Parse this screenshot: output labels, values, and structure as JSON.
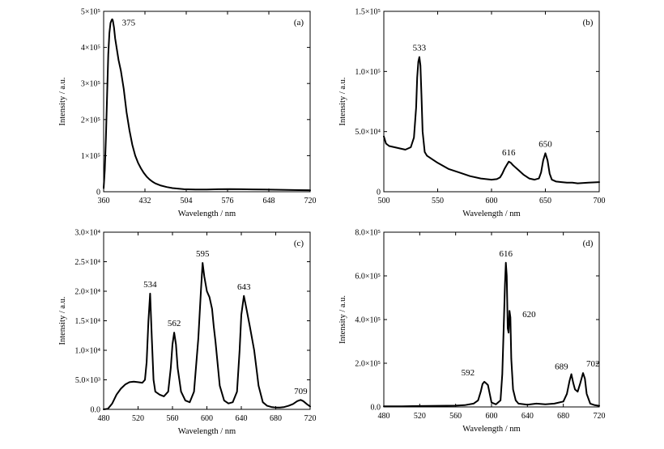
{
  "chart_data": [
    {
      "type": "line",
      "panel_label": "(a)",
      "xlabel": "Wavelength / nm",
      "ylabel": "Intensity / a.u.",
      "xlim": [
        360,
        720
      ],
      "ylim": [
        0,
        500000
      ],
      "x_ticks": [
        360,
        432,
        504,
        576,
        648,
        720
      ],
      "x_tick_labels": [
        "360",
        "432",
        "504",
        "576",
        "648",
        "720"
      ],
      "y_ticks": [
        0,
        100000,
        200000,
        300000,
        400000,
        500000
      ],
      "y_tick_labels": [
        "0",
        "1×10⁵",
        "2×10⁵",
        "3×10⁵",
        "4×10⁵",
        "5×10⁵"
      ],
      "annotations": [
        {
          "text": "375",
          "x": 375,
          "y": 470000
        }
      ],
      "series": [
        {
          "x": [
            360,
            362,
            364,
            366,
            368,
            370,
            372,
            374,
            375,
            376,
            378,
            380,
            383,
            386,
            390,
            395,
            400,
            405,
            410,
            415,
            420,
            425,
            430,
            435,
            440,
            445,
            450,
            460,
            470,
            480,
            500,
            520,
            540,
            560,
            580,
            600,
            620,
            640,
            660,
            680,
            700,
            720
          ],
          "y": [
            10000,
            60000,
            150000,
            270000,
            380000,
            440000,
            468000,
            476000,
            478000,
            475000,
            455000,
            425000,
            395000,
            365000,
            335000,
            285000,
            220000,
            170000,
            130000,
            100000,
            80000,
            65000,
            52000,
            42000,
            34000,
            28000,
            23000,
            17000,
            13000,
            10000,
            7000,
            6000,
            6000,
            7000,
            7500,
            7000,
            6500,
            6000,
            5500,
            5000,
            4500,
            4000
          ]
        }
      ]
    },
    {
      "type": "line",
      "panel_label": "(b)",
      "xlabel": "Wavelength / nm",
      "ylabel": "Intensity / a.u.",
      "xlim": [
        500,
        700
      ],
      "ylim": [
        0,
        150000
      ],
      "x_ticks": [
        500,
        550,
        600,
        650,
        700
      ],
      "x_tick_labels": [
        "500",
        "550",
        "600",
        "650",
        "700"
      ],
      "y_ticks": [
        0,
        50000,
        100000,
        150000
      ],
      "y_tick_labels": [
        "0",
        "5.0×10⁴",
        "1.0×10⁵",
        "1.5×10⁵"
      ],
      "annotations": [
        {
          "text": "533",
          "x": 533,
          "y": 112000
        },
        {
          "text": "616",
          "x": 616,
          "y": 25000
        },
        {
          "text": "650",
          "x": 650,
          "y": 32000
        }
      ],
      "series": [
        {
          "x": [
            500,
            502,
            505,
            510,
            515,
            520,
            525,
            528,
            530,
            531,
            532,
            533,
            534,
            535,
            536,
            538,
            540,
            545,
            550,
            560,
            570,
            580,
            590,
            600,
            605,
            608,
            610,
            612,
            614,
            616,
            618,
            620,
            625,
            630,
            635,
            640,
            644,
            646,
            648,
            650,
            652,
            654,
            656,
            660,
            665,
            670,
            675,
            680,
            690,
            700
          ],
          "y": [
            46000,
            40000,
            38000,
            37000,
            36000,
            35000,
            37000,
            45000,
            70000,
            95000,
            108000,
            112000,
            105000,
            80000,
            50000,
            33000,
            30000,
            27000,
            24000,
            19000,
            16000,
            13000,
            11000,
            10000,
            10500,
            12000,
            15000,
            19000,
            22000,
            25000,
            24000,
            22000,
            18000,
            14000,
            11000,
            10000,
            11000,
            16000,
            26000,
            32000,
            26000,
            15000,
            10000,
            8500,
            8000,
            7500,
            7500,
            7000,
            7500,
            8000
          ]
        }
      ]
    },
    {
      "type": "line",
      "panel_label": "(c)",
      "xlabel": "Wavelength / nm",
      "ylabel": "Intensity / a.u.",
      "xlim": [
        480,
        720
      ],
      "ylim": [
        0,
        30000
      ],
      "x_ticks": [
        480,
        520,
        560,
        600,
        640,
        680,
        720
      ],
      "x_tick_labels": [
        "480",
        "520",
        "560",
        "600",
        "640",
        "680",
        "720"
      ],
      "y_ticks": [
        0,
        5000,
        10000,
        15000,
        20000,
        25000,
        30000
      ],
      "y_tick_labels": [
        "0.0",
        "5.0×10³",
        "1.0×10⁴",
        "1.5×10⁴",
        "2.0×10⁴",
        "2.5×10⁴",
        "3.0×10⁴"
      ],
      "annotations": [
        {
          "text": "534",
          "x": 534,
          "y": 19600
        },
        {
          "text": "562",
          "x": 562,
          "y": 13000
        },
        {
          "text": "595",
          "x": 595,
          "y": 24800
        },
        {
          "text": "643",
          "x": 643,
          "y": 19200
        },
        {
          "text": "709",
          "x": 709,
          "y": 1800
        }
      ],
      "series": [
        {
          "x": [
            480,
            485,
            490,
            495,
            500,
            505,
            510,
            515,
            520,
            525,
            528,
            530,
            532,
            534,
            536,
            538,
            540,
            545,
            550,
            555,
            558,
            560,
            562,
            564,
            566,
            570,
            575,
            580,
            585,
            590,
            593,
            595,
            597,
            600,
            603,
            606,
            608,
            610,
            615,
            620,
            625,
            630,
            635,
            638,
            640,
            643,
            646,
            650,
            655,
            658,
            660,
            665,
            670,
            675,
            680,
            685,
            690,
            695,
            700,
            705,
            709,
            712,
            716,
            720
          ],
          "y": [
            0,
            100,
            1000,
            2500,
            3500,
            4200,
            4600,
            4700,
            4600,
            4500,
            5000,
            8000,
            15000,
            19600,
            12000,
            5000,
            3000,
            2500,
            2200,
            3000,
            7000,
            11000,
            13000,
            11000,
            7000,
            3000,
            1500,
            1200,
            3000,
            12000,
            20000,
            24800,
            22500,
            20000,
            19000,
            17000,
            14000,
            11500,
            4000,
            1500,
            1000,
            1200,
            3000,
            10000,
            16000,
            19200,
            17000,
            14000,
            10000,
            6500,
            4000,
            1200,
            600,
            400,
            300,
            300,
            400,
            600,
            900,
            1400,
            1600,
            1400,
            900,
            500
          ]
        }
      ]
    },
    {
      "type": "line",
      "panel_label": "(d)",
      "xlabel": "Wavelength / nm",
      "ylabel": "Intensity / a.u.",
      "xlim": [
        480,
        720
      ],
      "ylim": [
        0,
        800000
      ],
      "x_ticks": [
        480,
        520,
        560,
        600,
        640,
        680,
        720
      ],
      "x_tick_labels": [
        "480",
        "520",
        "560",
        "600",
        "640",
        "680",
        "720"
      ],
      "y_ticks": [
        0,
        200000,
        400000,
        600000,
        800000
      ],
      "y_tick_labels": [
        "0.0",
        "2.0×10⁵",
        "4.0×10⁵",
        "6.0×10⁵",
        "8.0×10⁵"
      ],
      "annotations": [
        {
          "text": "592",
          "x": 592,
          "y": 115000
        },
        {
          "text": "616",
          "x": 616,
          "y": 660000
        },
        {
          "text": "620",
          "x": 620,
          "y": 440000
        },
        {
          "text": "689",
          "x": 689,
          "y": 150000
        },
        {
          "text": "702",
          "x": 702,
          "y": 155000
        }
      ],
      "series": [
        {
          "x": [
            480,
            500,
            520,
            540,
            560,
            570,
            580,
            585,
            588,
            590,
            592,
            594,
            596,
            598,
            600,
            605,
            610,
            612,
            614,
            615,
            616,
            617,
            618,
            619,
            620,
            621,
            622,
            624,
            627,
            630,
            640,
            650,
            660,
            670,
            680,
            684,
            687,
            689,
            691,
            693,
            696,
            699,
            702,
            704,
            706,
            710,
            715,
            720
          ],
          "y": [
            3000,
            3000,
            4000,
            5000,
            6000,
            8000,
            15000,
            30000,
            70000,
            105000,
            115000,
            108000,
            100000,
            60000,
            20000,
            12000,
            30000,
            150000,
            420000,
            560000,
            660000,
            600000,
            360000,
            340000,
            440000,
            410000,
            220000,
            80000,
            30000,
            15000,
            10000,
            15000,
            12000,
            15000,
            25000,
            60000,
            120000,
            150000,
            110000,
            80000,
            70000,
            110000,
            155000,
            130000,
            60000,
            15000,
            8000,
            5000
          ]
        }
      ]
    }
  ]
}
